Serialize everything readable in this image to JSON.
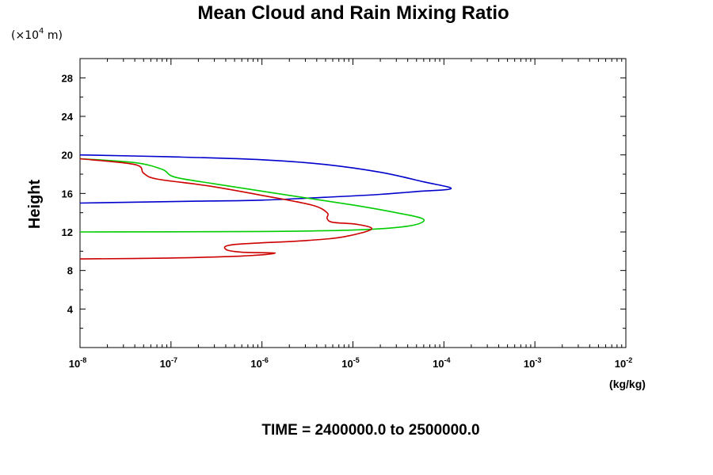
{
  "chart_data": {
    "type": "line",
    "title": "Mean Cloud and Rain Mixing Ratio",
    "ylabel": "Height",
    "y_scale_note": {
      "prefix": "(×10",
      "power": "4",
      "suffix": " m)"
    },
    "xunit": "(kg/kg)",
    "xscale": "log",
    "xlim": [
      1e-08,
      0.01
    ],
    "ylim": [
      0,
      30
    ],
    "x_ticks": [
      {
        "value": 1e-08,
        "base": "10",
        "exp": "-8"
      },
      {
        "value": 1e-07,
        "base": "10",
        "exp": "-7"
      },
      {
        "value": 1e-06,
        "base": "10",
        "exp": "-6"
      },
      {
        "value": 1e-05,
        "base": "10",
        "exp": "-5"
      },
      {
        "value": 0.0001,
        "base": "10",
        "exp": "-4"
      },
      {
        "value": 0.001,
        "base": "10",
        "exp": "-3"
      },
      {
        "value": 0.01,
        "base": "10",
        "exp": "-2"
      }
    ],
    "y_ticks": [
      "4",
      "8",
      "12",
      "16",
      "20",
      "24",
      "28"
    ],
    "footer": "TIME = 2400000.0 to 2500000.0",
    "series": [
      {
        "color": "#0000cc",
        "points": [
          [
            1e-08,
            15.0
          ],
          [
            2e-07,
            15.2
          ],
          [
            1e-06,
            15.3
          ],
          [
            5e-06,
            15.6
          ],
          [
            2e-05,
            15.9
          ],
          [
            5e-05,
            16.2
          ],
          [
            0.00012,
            16.5
          ],
          [
            6e-05,
            17.2
          ],
          [
            2e-05,
            18.2
          ],
          [
            5e-06,
            19.0
          ],
          [
            1e-06,
            19.5
          ],
          [
            1e-07,
            19.8
          ],
          [
            1e-08,
            20.0
          ]
        ]
      },
      {
        "color": "#00cc00",
        "points": [
          [
            1e-08,
            12.0
          ],
          [
            1e-06,
            12.05
          ],
          [
            1e-05,
            12.2
          ],
          [
            4e-05,
            12.6
          ],
          [
            6e-05,
            13.3
          ],
          [
            3e-05,
            14.0
          ],
          [
            1e-05,
            14.8
          ],
          [
            2e-06,
            15.8
          ],
          [
            3e-07,
            17.0
          ],
          [
            1.1e-07,
            17.7
          ],
          [
            8e-08,
            18.5
          ],
          [
            4e-08,
            19.2
          ],
          [
            1e-08,
            19.6
          ]
        ]
      },
      {
        "color": "#cc0000",
        "points": [
          [
            1e-08,
            9.2
          ],
          [
            1e-07,
            9.3
          ],
          [
            6e-07,
            9.5
          ],
          [
            1.4e-06,
            9.8
          ],
          [
            6e-07,
            9.9
          ],
          [
            4e-07,
            10.2
          ],
          [
            5e-07,
            10.7
          ],
          [
            3e-06,
            11.1
          ],
          [
            8e-06,
            11.5
          ],
          [
            1.6e-05,
            12.3
          ],
          [
            1.1e-05,
            12.8
          ],
          [
            6e-06,
            13.0
          ],
          [
            5.2e-06,
            13.4
          ],
          [
            5.2e-06,
            14.0
          ],
          [
            3.5e-06,
            14.8
          ],
          [
            1e-06,
            15.8
          ],
          [
            2.5e-07,
            16.8
          ],
          [
            7e-08,
            17.5
          ],
          [
            5e-08,
            18.1
          ],
          [
            4e-08,
            19.0
          ],
          [
            1e-08,
            19.6
          ]
        ]
      }
    ]
  }
}
